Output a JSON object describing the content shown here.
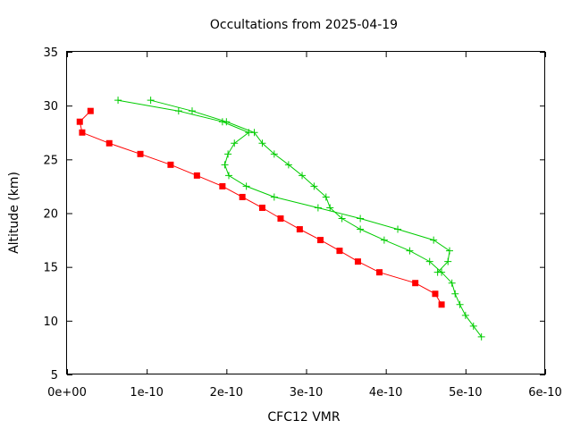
{
  "chart_data": {
    "type": "line",
    "title": "Occultations from 2025-04-19",
    "xlabel": "CFC12 VMR",
    "ylabel": "Altitude (km)",
    "xlim": [
      0,
      6e-10
    ],
    "ylim": [
      5,
      35
    ],
    "x_ticks": [
      0,
      1e-10,
      2e-10,
      3e-10,
      4e-10,
      5e-10,
      6e-10
    ],
    "x_tick_labels": [
      "0e+00",
      "1e-10",
      "2e-10",
      "3e-10",
      "4e-10",
      "5e-10",
      "6e-10"
    ],
    "y_ticks": [
      5,
      10,
      15,
      20,
      25,
      30,
      35
    ],
    "y_tick_labels": [
      "5",
      "10",
      "15",
      "20",
      "25",
      "30",
      "35"
    ],
    "grid": false,
    "legend": "none",
    "series": [
      {
        "color": "#ff0000",
        "marker": "square",
        "points": [
          [
            2.95e-11,
            29.5
          ],
          [
            1.6e-11,
            28.5
          ],
          [
            1.9e-11,
            27.5
          ],
          [
            5.3e-11,
            26.5
          ],
          [
            9.2e-11,
            25.5
          ],
          [
            1.3e-10,
            24.5
          ],
          [
            1.63e-10,
            23.5
          ],
          [
            1.95e-10,
            22.5
          ],
          [
            2.2e-10,
            21.5
          ],
          [
            2.45e-10,
            20.5
          ],
          [
            2.68e-10,
            19.5
          ],
          [
            2.92e-10,
            18.5
          ],
          [
            3.18e-10,
            17.5
          ],
          [
            3.42e-10,
            16.5
          ],
          [
            3.65e-10,
            15.5
          ],
          [
            3.92e-10,
            14.5
          ],
          [
            4.37e-10,
            13.5
          ],
          [
            4.62e-10,
            12.5
          ],
          [
            4.7e-10,
            11.5
          ]
        ]
      },
      {
        "color": "#00cc00",
        "marker": "plus",
        "points": [
          [
            6.4e-11,
            30.5
          ],
          [
            1.4e-10,
            29.5
          ],
          [
            1.95e-10,
            28.5
          ],
          [
            2.28e-10,
            27.5
          ],
          [
            2.1e-10,
            26.5
          ],
          [
            2.02e-10,
            25.5
          ],
          [
            1.98e-10,
            24.5
          ],
          [
            2.03e-10,
            23.5
          ],
          [
            2.25e-10,
            22.5
          ],
          [
            2.6e-10,
            21.5
          ],
          [
            3.15e-10,
            20.5
          ],
          [
            3.68e-10,
            19.5
          ],
          [
            4.15e-10,
            18.5
          ],
          [
            4.6e-10,
            17.5
          ],
          [
            4.8e-10,
            16.5
          ],
          [
            4.78e-10,
            15.5
          ],
          [
            4.65e-10,
            14.5
          ]
        ]
      },
      {
        "color": "#00cc00",
        "marker": "plus",
        "points": [
          [
            1.05e-10,
            30.5
          ],
          [
            1.57e-10,
            29.5
          ],
          [
            2e-10,
            28.5
          ],
          [
            2.35e-10,
            27.5
          ],
          [
            2.45e-10,
            26.5
          ],
          [
            2.6e-10,
            25.5
          ],
          [
            2.78e-10,
            24.5
          ],
          [
            2.95e-10,
            23.5
          ],
          [
            3.1e-10,
            22.5
          ],
          [
            3.25e-10,
            21.5
          ],
          [
            3.3e-10,
            20.5
          ],
          [
            3.45e-10,
            19.5
          ],
          [
            3.68e-10,
            18.5
          ],
          [
            3.98e-10,
            17.5
          ],
          [
            4.3e-10,
            16.5
          ],
          [
            4.55e-10,
            15.5
          ],
          [
            4.7e-10,
            14.5
          ],
          [
            4.83e-10,
            13.5
          ],
          [
            4.87e-10,
            12.5
          ],
          [
            4.93e-10,
            11.5
          ],
          [
            5e-10,
            10.5
          ],
          [
            5.1e-10,
            9.5
          ],
          [
            5.2e-10,
            8.5
          ]
        ]
      }
    ]
  }
}
